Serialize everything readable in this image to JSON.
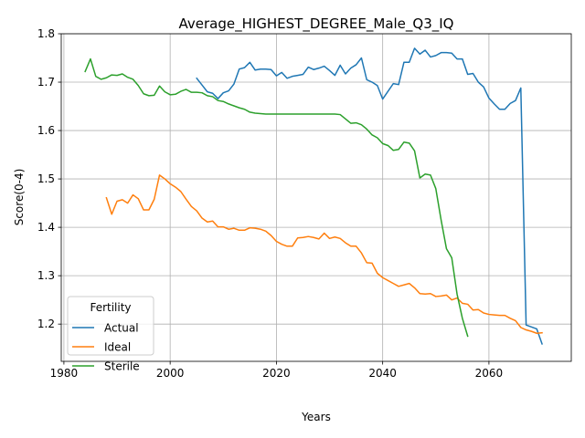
{
  "chart_data": {
    "type": "line",
    "title": "Average_HIGHEST_DEGREE_Male_Q3_IQ",
    "xlabel": "Years",
    "ylabel": "Score(0-4)",
    "xlim": [
      1979.5,
      2075.5
    ],
    "ylim": [
      1.123,
      1.8
    ],
    "xticks": [
      1980,
      2000,
      2020,
      2040,
      2060
    ],
    "yticks": [
      1.2,
      1.3,
      1.4,
      1.5,
      1.6,
      1.7,
      1.8
    ],
    "xtick_labels": [
      "1980",
      "2000",
      "2020",
      "2040",
      "2060"
    ],
    "ytick_labels": [
      "1.2",
      "1.3",
      "1.4",
      "1.5",
      "1.6",
      "1.7",
      "1.8"
    ],
    "grid": true,
    "legend": {
      "title": "Fertility",
      "position": "lower-left"
    },
    "series": [
      {
        "name": "Actual",
        "color": "#1f77b4",
        "x": [
          2005,
          2006,
          2007,
          2008,
          2009,
          2010,
          2011,
          2012,
          2013,
          2014,
          2015,
          2016,
          2017,
          2018,
          2019,
          2020,
          2021,
          2022,
          2023,
          2024,
          2025,
          2026,
          2027,
          2028,
          2029,
          2030,
          2031,
          2032,
          2033,
          2034,
          2035,
          2036,
          2037,
          2038,
          2039,
          2040,
          2041,
          2042,
          2043,
          2044,
          2045,
          2046,
          2047,
          2048,
          2049,
          2050,
          2051,
          2052,
          2053,
          2054,
          2055,
          2056,
          2057,
          2058,
          2059,
          2060,
          2061,
          2062,
          2063,
          2064,
          2065,
          2066,
          2067,
          2068,
          2069,
          2070
        ],
        "y": [
          1.708,
          1.694,
          1.68,
          1.677,
          1.666,
          1.678,
          1.682,
          1.696,
          1.727,
          1.73,
          1.741,
          1.725,
          1.727,
          1.727,
          1.726,
          1.713,
          1.72,
          1.708,
          1.712,
          1.714,
          1.716,
          1.731,
          1.726,
          1.729,
          1.733,
          1.724,
          1.714,
          1.735,
          1.717,
          1.729,
          1.736,
          1.75,
          1.705,
          1.7,
          1.693,
          1.665,
          1.681,
          1.697,
          1.695,
          1.741,
          1.741,
          1.77,
          1.758,
          1.766,
          1.752,
          1.755,
          1.761,
          1.761,
          1.76,
          1.748,
          1.748,
          1.716,
          1.718,
          1.7,
          1.69,
          1.667,
          1.655,
          1.644,
          1.644,
          1.656,
          1.662,
          1.688,
          1.198,
          1.194,
          1.19,
          1.159
        ]
      },
      {
        "name": "Ideal",
        "color": "#ff7f0e",
        "x": [
          1988,
          1989,
          1990,
          1991,
          1992,
          1993,
          1994,
          1995,
          1996,
          1997,
          1998,
          1999,
          2000,
          2001,
          2002,
          2003,
          2004,
          2005,
          2006,
          2007,
          2008,
          2009,
          2010,
          2011,
          2012,
          2013,
          2014,
          2015,
          2016,
          2017,
          2018,
          2019,
          2020,
          2021,
          2022,
          2023,
          2024,
          2025,
          2026,
          2027,
          2028,
          2029,
          2030,
          2031,
          2032,
          2033,
          2034,
          2035,
          2036,
          2037,
          2038,
          2039,
          2040,
          2041,
          2042,
          2043,
          2044,
          2045,
          2046,
          2047,
          2048,
          2049,
          2050,
          2051,
          2052,
          2053,
          2054,
          2055,
          2056,
          2057,
          2058,
          2059,
          2060,
          2061,
          2062,
          2063,
          2064,
          2065,
          2066,
          2067,
          2068,
          2069,
          2070
        ],
        "y": [
          1.461,
          1.427,
          1.454,
          1.457,
          1.45,
          1.467,
          1.459,
          1.436,
          1.436,
          1.458,
          1.508,
          1.5,
          1.49,
          1.483,
          1.474,
          1.458,
          1.443,
          1.434,
          1.419,
          1.411,
          1.413,
          1.401,
          1.401,
          1.396,
          1.398,
          1.394,
          1.394,
          1.399,
          1.398,
          1.396,
          1.392,
          1.383,
          1.371,
          1.365,
          1.361,
          1.361,
          1.378,
          1.379,
          1.381,
          1.379,
          1.376,
          1.388,
          1.377,
          1.38,
          1.377,
          1.368,
          1.361,
          1.361,
          1.347,
          1.327,
          1.326,
          1.305,
          1.296,
          1.29,
          1.284,
          1.278,
          1.281,
          1.284,
          1.275,
          1.263,
          1.262,
          1.263,
          1.257,
          1.258,
          1.26,
          1.25,
          1.254,
          1.243,
          1.241,
          1.229,
          1.23,
          1.223,
          1.22,
          1.219,
          1.218,
          1.218,
          1.212,
          1.207,
          1.193,
          1.188,
          1.185,
          1.181,
          1.182
        ]
      },
      {
        "name": "Sterile",
        "color": "#2ca02c",
        "x": [
          1984,
          1985,
          1986,
          1987,
          1988,
          1989,
          1990,
          1991,
          1992,
          1993,
          1994,
          1995,
          1996,
          1997,
          1998,
          1999,
          2000,
          2001,
          2002,
          2003,
          2004,
          2005,
          2006,
          2007,
          2008,
          2009,
          2010,
          2011,
          2012,
          2013,
          2014,
          2015,
          2016,
          2017,
          2018,
          2019,
          2020,
          2021,
          2022,
          2023,
          2024,
          2025,
          2026,
          2027,
          2028,
          2029,
          2030,
          2031,
          2032,
          2033,
          2034,
          2035,
          2036,
          2037,
          2038,
          2039,
          2040,
          2041,
          2042,
          2043,
          2044,
          2045,
          2046,
          2047,
          2048,
          2049,
          2050,
          2051,
          2052,
          2053,
          2054,
          2055,
          2056
        ],
        "y": [
          1.722,
          1.748,
          1.712,
          1.706,
          1.709,
          1.715,
          1.714,
          1.717,
          1.71,
          1.706,
          1.693,
          1.676,
          1.672,
          1.673,
          1.692,
          1.68,
          1.674,
          1.675,
          1.681,
          1.685,
          1.679,
          1.679,
          1.678,
          1.672,
          1.67,
          1.662,
          1.66,
          1.655,
          1.651,
          1.647,
          1.644,
          1.638,
          1.636,
          1.635,
          1.634,
          1.634,
          1.634,
          1.634,
          1.634,
          1.634,
          1.634,
          1.634,
          1.634,
          1.634,
          1.634,
          1.634,
          1.634,
          1.634,
          1.633,
          1.624,
          1.615,
          1.616,
          1.612,
          1.603,
          1.591,
          1.585,
          1.573,
          1.569,
          1.559,
          1.561,
          1.576,
          1.574,
          1.558,
          1.502,
          1.51,
          1.508,
          1.48,
          1.415,
          1.356,
          1.337,
          1.262,
          1.212,
          1.175
        ]
      }
    ]
  }
}
